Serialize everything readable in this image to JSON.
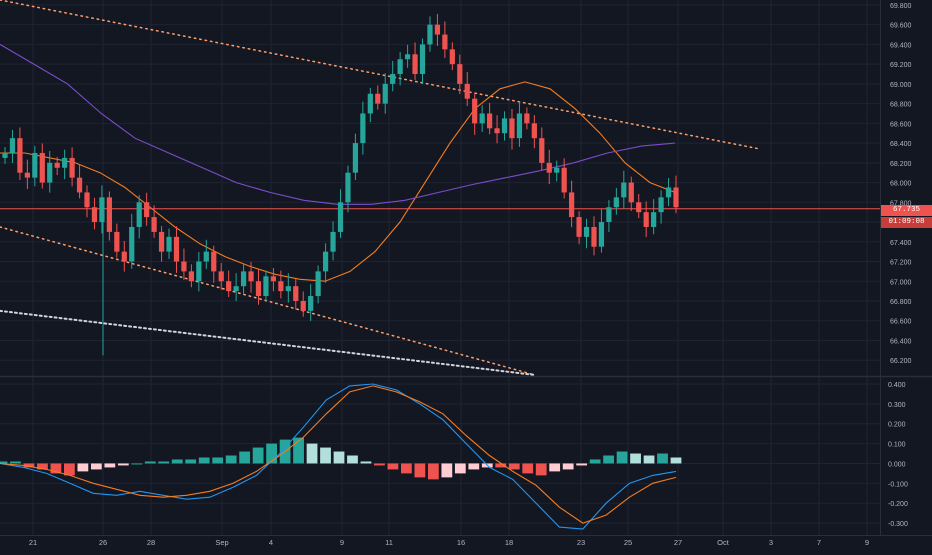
{
  "colors": {
    "background": "#131722",
    "grid": "#1f2433",
    "up_candle": "#26a69a",
    "down_candle": "#ef5350",
    "ma_fast": "#f57c1f",
    "ma_slow": "#7b4dcc",
    "macd_line": "#2196f3",
    "signal_line": "#f57c1f",
    "hist_up_strong": "#26a69a",
    "hist_up_weak": "#b2dfdb",
    "hist_down_strong": "#ef5350",
    "hist_down_weak": "#ffcdd2",
    "price_line": "#ef5350",
    "trendline": "#ff9e6a"
  },
  "price_tag": {
    "price": "67.735",
    "countdown": "01:09:08"
  },
  "chart_data": [
    {
      "type": "candlestick",
      "title": "",
      "grid": true,
      "y_axis_position": "right",
      "yticks": [
        "69.800",
        "69.600",
        "69.400",
        "69.200",
        "69.000",
        "68.800",
        "68.600",
        "68.400",
        "68.200",
        "68.000",
        "67.800",
        "67.600",
        "67.400",
        "67.200",
        "67.000",
        "66.800",
        "66.600",
        "66.400",
        "66.200"
      ],
      "ylim": [
        66.05,
        69.85
      ],
      "x_tick_labels": [
        "21",
        "26",
        "28",
        "Sep",
        "4",
        "9",
        "11",
        "16",
        "18",
        "23",
        "25",
        "27",
        "Oct",
        "3",
        "7",
        "9"
      ],
      "current_price": 67.735,
      "close_series": [
        68.3,
        68.45,
        68.1,
        68.05,
        68.3,
        68.0,
        68.2,
        68.15,
        68.25,
        68.05,
        67.9,
        67.75,
        67.6,
        67.85,
        67.5,
        67.3,
        67.2,
        67.55,
        67.8,
        67.65,
        67.5,
        67.3,
        67.45,
        67.2,
        67.1,
        67.0,
        67.2,
        67.3,
        67.1,
        67.0,
        66.9,
        66.95,
        67.1,
        67.0,
        66.85,
        67.05,
        67.0,
        66.9,
        66.95,
        66.8,
        66.7,
        66.85,
        67.1,
        67.3,
        67.5,
        67.8,
        68.1,
        68.4,
        68.7,
        68.9,
        68.8,
        69.0,
        69.1,
        69.25,
        69.3,
        69.1,
        69.4,
        69.6,
        69.5,
        69.35,
        69.2,
        69.0,
        68.85,
        68.6,
        68.7,
        68.55,
        68.5,
        68.65,
        68.45,
        68.7,
        68.6,
        68.45,
        68.2,
        68.1,
        68.15,
        67.9,
        67.65,
        67.45,
        67.55,
        67.35,
        67.6,
        67.75,
        67.85,
        68.0,
        67.8,
        67.7,
        67.55,
        67.7,
        67.85,
        67.95,
        67.75
      ],
      "overlays": [
        {
          "name": "",
          "color": "#f57c1f",
          "values": [
            68.3,
            68.3,
            68.25,
            68.2,
            68.1,
            67.95,
            67.75,
            67.55,
            67.38,
            67.25,
            67.15,
            67.07,
            67.02,
            67.0,
            67.1,
            67.3,
            67.6,
            68.0,
            68.4,
            68.75,
            68.95,
            69.02,
            68.95,
            68.75,
            68.5,
            68.2,
            68.0,
            67.9
          ]
        },
        {
          "name": "",
          "color": "#7b4dcc",
          "values": [
            69.4,
            69.2,
            69.0,
            68.7,
            68.45,
            68.3,
            68.15,
            68.0,
            67.9,
            67.82,
            67.78,
            67.78,
            67.82,
            67.9,
            67.98,
            68.05,
            68.12,
            68.2,
            68.3,
            68.37,
            68.4
          ]
        }
      ],
      "trendlines": [
        {
          "style": "dotted",
          "from": [
            0,
            69.85
          ],
          "to": [
            760,
            68.34
          ]
        },
        {
          "style": "dotted",
          "from": [
            0,
            67.55
          ],
          "to": [
            535,
            66.05
          ]
        },
        {
          "style": "dotted",
          "from": [
            0,
            66.7
          ],
          "to": [
            535,
            66.05
          ]
        }
      ]
    },
    {
      "type": "macd",
      "grid": true,
      "yticks": [
        "0.400",
        "0.300",
        "0.200",
        "0.100",
        "0.000",
        "-0.100",
        "-0.200",
        "-0.300"
      ],
      "ylim": [
        -0.36,
        0.43
      ],
      "macd_line": [
        0.0,
        -0.02,
        -0.05,
        -0.1,
        -0.15,
        -0.16,
        -0.14,
        -0.16,
        -0.18,
        -0.17,
        -0.12,
        -0.06,
        0.05,
        0.18,
        0.32,
        0.39,
        0.4,
        0.37,
        0.3,
        0.22,
        0.1,
        -0.02,
        -0.08,
        -0.2,
        -0.32,
        -0.33,
        -0.2,
        -0.1,
        -0.06,
        -0.04
      ],
      "signal_line": [
        0.0,
        -0.01,
        -0.03,
        -0.06,
        -0.1,
        -0.13,
        -0.16,
        -0.17,
        -0.16,
        -0.14,
        -0.1,
        -0.04,
        0.04,
        0.13,
        0.25,
        0.36,
        0.39,
        0.36,
        0.31,
        0.25,
        0.14,
        0.04,
        -0.04,
        -0.11,
        -0.22,
        -0.3,
        -0.26,
        -0.17,
        -0.1,
        -0.07
      ],
      "histogram": [
        0.01,
        0.01,
        -0.02,
        -0.03,
        -0.05,
        -0.06,
        -0.04,
        -0.03,
        -0.02,
        -0.01,
        0.0,
        0.01,
        0.01,
        0.02,
        0.02,
        0.03,
        0.03,
        0.04,
        0.06,
        0.08,
        0.1,
        0.12,
        0.13,
        0.1,
        0.08,
        0.06,
        0.04,
        0.01,
        -0.01,
        -0.03,
        -0.05,
        -0.07,
        -0.08,
        -0.07,
        -0.05,
        -0.03,
        -0.02,
        -0.02,
        -0.03,
        -0.05,
        -0.06,
        -0.04,
        -0.03,
        -0.01,
        0.02,
        0.04,
        0.06,
        0.05,
        0.04,
        0.05,
        0.03
      ]
    }
  ]
}
